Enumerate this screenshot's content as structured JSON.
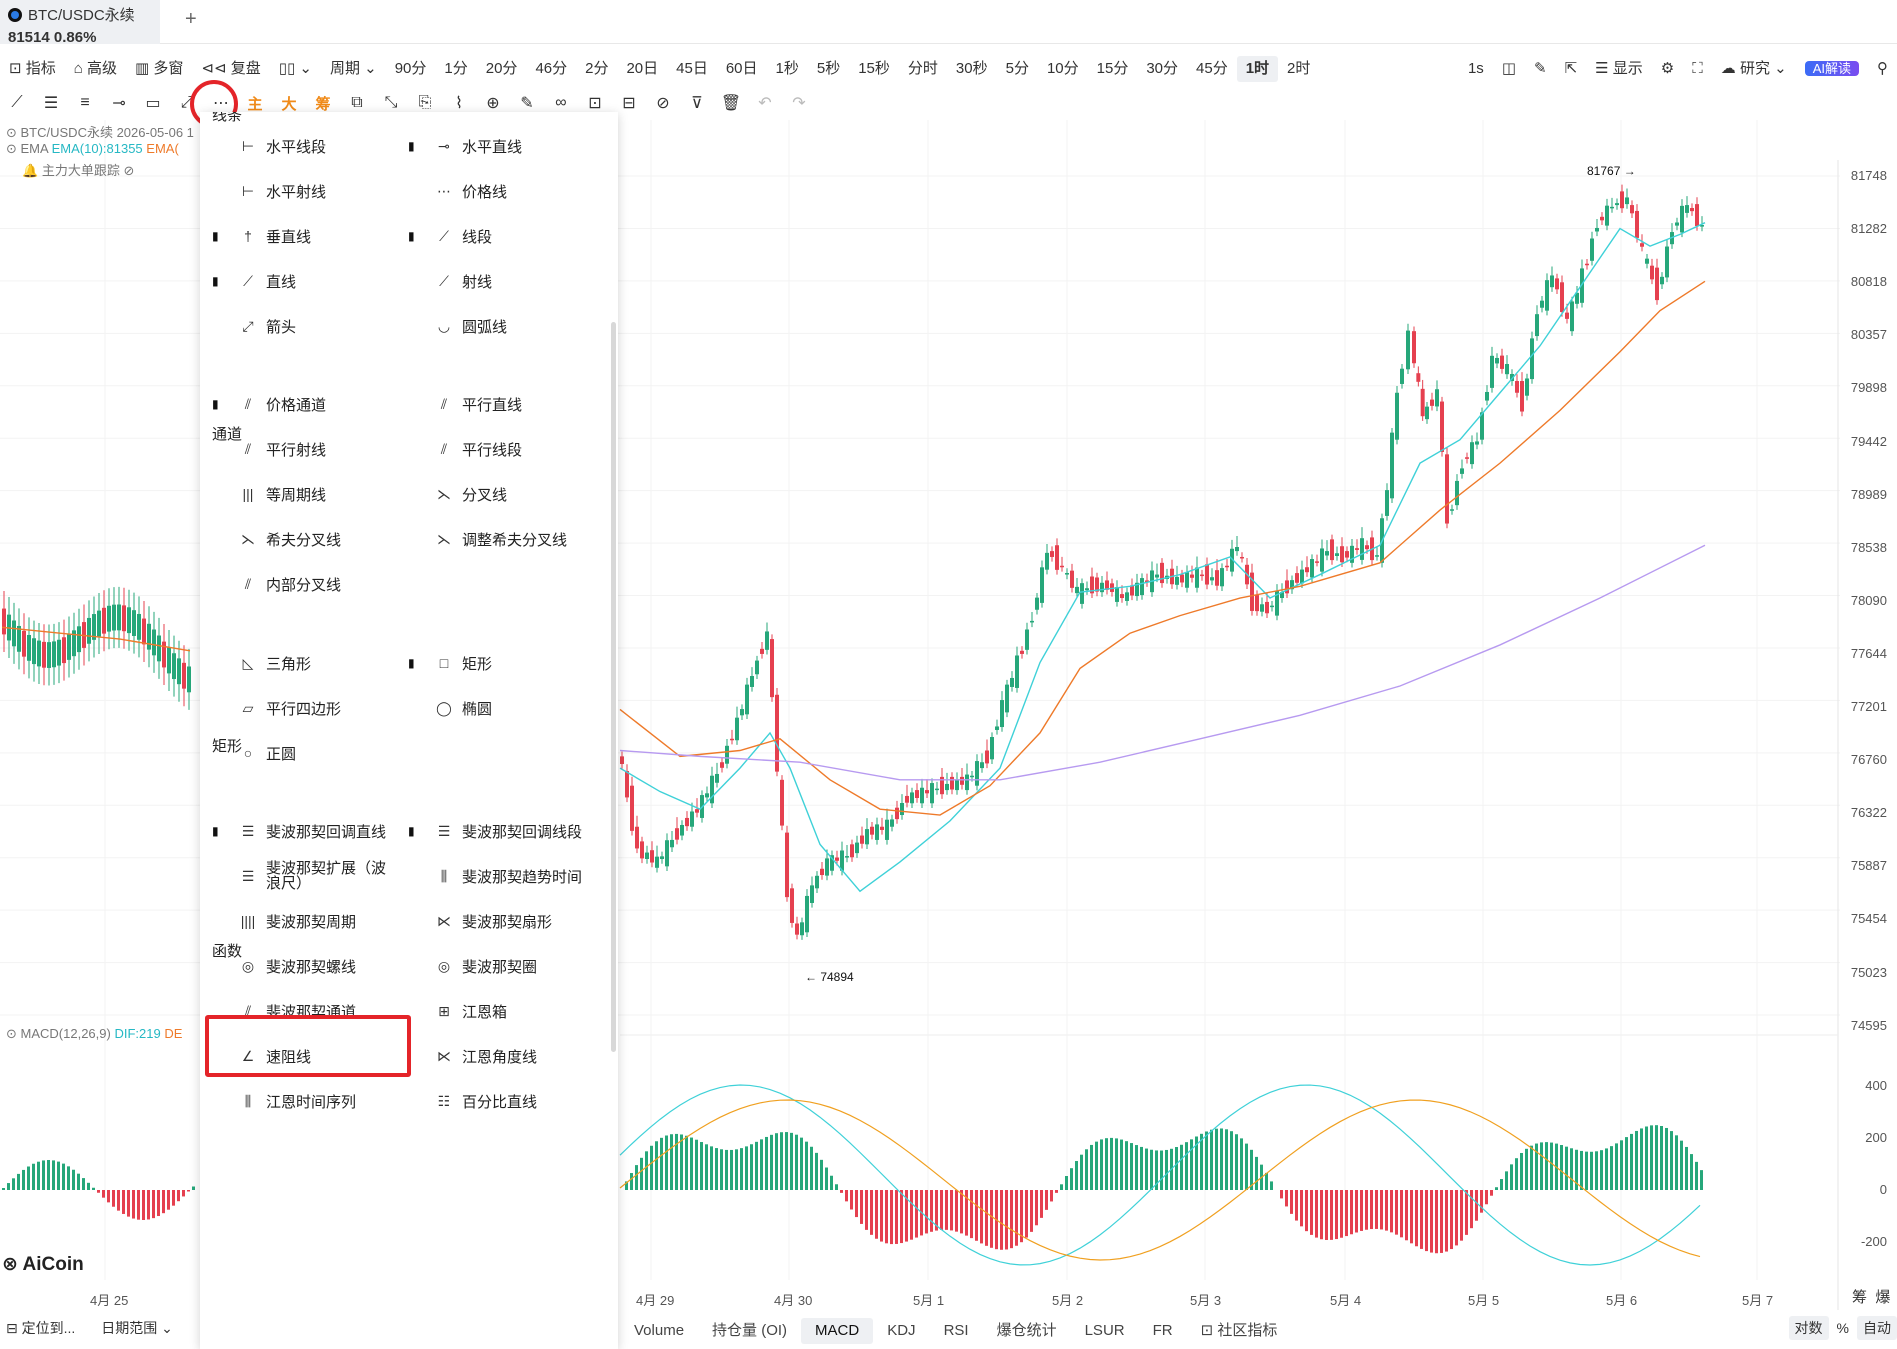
{
  "tab": {
    "symbol": "BTC/USDC永续",
    "price_change": "81514  0.86%",
    "add": "+"
  },
  "toolbar": {
    "indicator": "指标",
    "advanced": "高级",
    "multi": "多窗",
    "replay": "复盘",
    "period": "周期",
    "periods": [
      "90分",
      "1分",
      "20分",
      "46分",
      "2分",
      "20日",
      "45日",
      "60日",
      "1秒",
      "5秒",
      "15秒",
      "分时",
      "30秒",
      "5分",
      "10分",
      "15分",
      "30分",
      "45分",
      "1时",
      "2时"
    ],
    "active_period": "1时",
    "right": {
      "s1": "1s",
      "display": "显示",
      "research": "研究",
      "ai": "AI解读"
    }
  },
  "drawbar": {
    "main": "主",
    "big": "大",
    "chips": "筹"
  },
  "overlay": {
    "symbol_line": "BTC/USDC永续  2026-05-06 1",
    "ema_label": "EMA",
    "ema_value": "EMA(10):81355",
    "ema2": "EMA(",
    "tracker": "主力大单跟踪",
    "macd_label": "MACD(12,26,9)",
    "macd_dif": "DIF:219",
    "macd_dea": "DE"
  },
  "menu": {
    "sec_lines": "线条",
    "sec_channels": "通道",
    "sec_rects": "矩形",
    "sec_funcs": "函数",
    "items": [
      "水平线段",
      "水平直线",
      "水平射线",
      "价格线",
      "垂直线",
      "线段",
      "直线",
      "射线",
      "箭头",
      "圆弧线",
      "价格通道",
      "平行直线",
      "平行射线",
      "平行线段",
      "等周期线",
      "分叉线",
      "希夫分叉线",
      "调整希夫分叉线",
      "内部分叉线",
      "三角形",
      "矩形",
      "平行四边形",
      "椭圆",
      "正圆",
      "斐波那契回调直线",
      "斐波那契回调线段",
      "斐波那契扩展（波浪尺）",
      "斐波那契趋势时间",
      "斐波那契周期",
      "斐波那契扇形",
      "斐波那契螺线",
      "斐波那契圈",
      "斐波那契通道",
      "江恩箱",
      "速阻线",
      "江恩角度线",
      "江恩时间序列",
      "百分比直线"
    ]
  },
  "price_axis": [
    "81748",
    "81282",
    "80818",
    "80357",
    "79898",
    "79442",
    "78989",
    "78538",
    "78090",
    "77644",
    "77201",
    "76760",
    "76322",
    "75887",
    "75454",
    "75023",
    "74595"
  ],
  "macd_axis": [
    "400",
    "200",
    "0",
    "-200"
  ],
  "annotations": {
    "high": "81767 →",
    "low": "← 74894"
  },
  "dates": [
    "4月 25",
    "4月 29",
    "4月 30",
    "5月 1",
    "5月 2",
    "5月 3",
    "5月 4",
    "5月 5",
    "5月 6",
    "5月 7"
  ],
  "bottom_tabs": [
    "Volume",
    "持仓量 (OI)",
    "MACD",
    "KDJ",
    "RSI",
    "爆仓统计",
    "LSUR",
    "FR",
    "社区指标"
  ],
  "active_bottom": "MACD",
  "left_bottom": {
    "locate": "定位到...",
    "range": "日期范围"
  },
  "logo": "AiCoin",
  "br": {
    "chips": "筹",
    "burst": "爆",
    "log": "对数",
    "pct": "%",
    "auto": "自动"
  },
  "colors": {
    "up": "#26a77a",
    "down": "#e5404f",
    "ema10": "#3fd1d8",
    "ema_orange": "#ee7a2a",
    "ema_purple": "#b79af0",
    "highlight": "#e42429"
  }
}
